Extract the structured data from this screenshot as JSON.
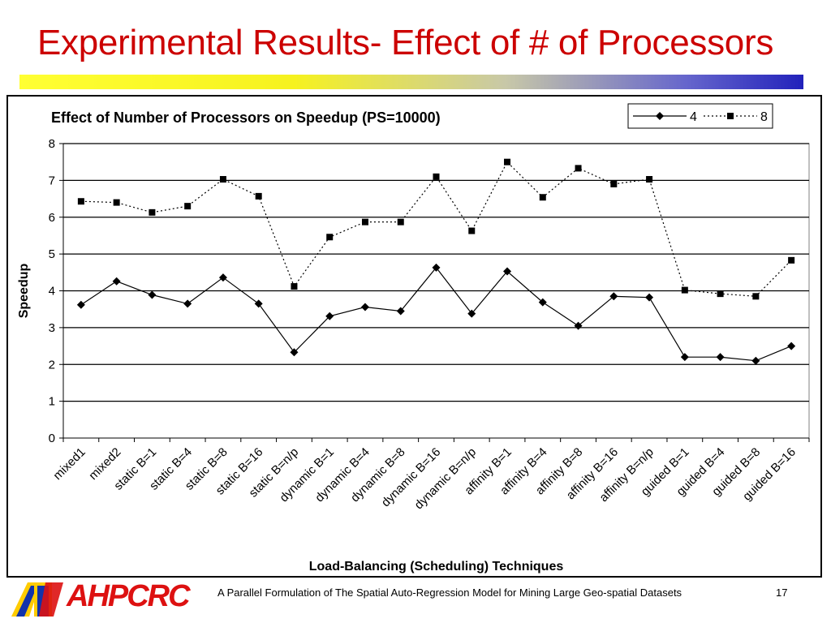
{
  "slide": {
    "title": "Experimental Results- Effect of # of Processors",
    "footer": "A Parallel Formulation of The Spatial Auto-Regression Model for Mining Large Geo-spatial Datasets",
    "page_number": "17",
    "logo_text": "AHPCRC"
  },
  "colors": {
    "title": "#cc0000",
    "logo_red": "#dd1111",
    "logo_blue": "#1133aa",
    "logo_yellow": "#ffcc00"
  },
  "chart_data": {
    "type": "line",
    "title": "Effect of Number of Processors on Speedup (PS=10000)",
    "xlabel": "Load-Balancing (Scheduling) Techniques",
    "ylabel": "Speedup",
    "ylim": [
      0,
      8
    ],
    "yticks": [
      0,
      1,
      2,
      3,
      4,
      5,
      6,
      7,
      8
    ],
    "grid": true,
    "legend_position": "top-right",
    "categories": [
      "mixed1",
      "mixed2",
      "static B=1",
      "static B=4",
      "static B=8",
      "static B=16",
      "static B=n/p",
      "dynamic B=1",
      "dynamic B=4",
      "dynamic B=8",
      "dynamic B=16",
      "dynamic B=n/p",
      "affinity B=1",
      "affinity B=4",
      "affinity B=8",
      "affinity B=16",
      "affinity B=n/p",
      "guided B=1",
      "guided B=4",
      "guided B=8",
      "guided B=16"
    ],
    "series": [
      {
        "name": "4",
        "marker": "diamond",
        "line_style": "solid",
        "values": [
          3.62,
          4.26,
          3.89,
          3.65,
          4.36,
          3.65,
          2.33,
          3.31,
          3.56,
          3.45,
          4.63,
          3.38,
          4.53,
          3.69,
          3.05,
          3.85,
          3.82,
          2.2,
          2.2,
          2.1,
          2.5
        ]
      },
      {
        "name": "8",
        "marker": "square",
        "line_style": "dotted",
        "values": [
          6.43,
          6.4,
          6.13,
          6.3,
          7.03,
          6.57,
          4.12,
          5.46,
          5.87,
          5.87,
          7.1,
          5.63,
          7.5,
          6.54,
          7.33,
          6.9,
          7.03,
          4.02,
          3.92,
          3.85,
          4.83
        ]
      }
    ]
  }
}
